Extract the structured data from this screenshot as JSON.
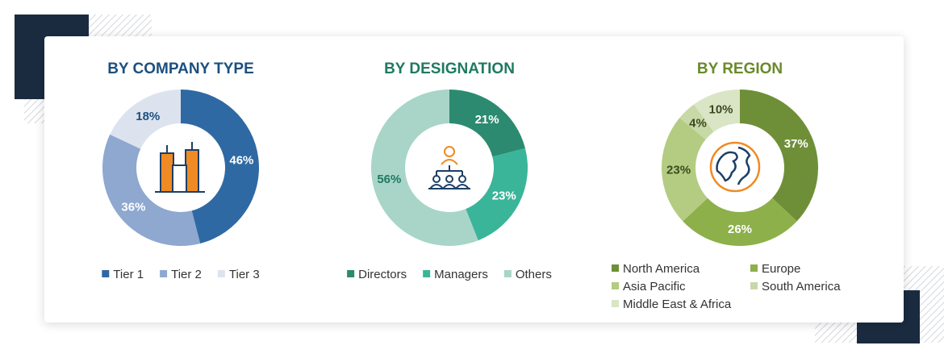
{
  "chart_data": [
    {
      "type": "donut",
      "title": "BY COMPANY TYPE",
      "title_color": "#1c4f7f",
      "categories": [
        "Tier 1",
        "Tier 2",
        "Tier 3"
      ],
      "values": [
        46,
        36,
        18
      ],
      "value_labels": [
        "46%",
        "36%",
        "18%"
      ],
      "colors": [
        "#2f69a3",
        "#8ea8cf",
        "#dce3ef"
      ]
    },
    {
      "type": "donut",
      "title": "BY DESIGNATION",
      "title_color": "#1f7a60",
      "categories": [
        "Directors",
        "Managers",
        "Others"
      ],
      "values": [
        21,
        23,
        56
      ],
      "value_labels": [
        "21%",
        "23%",
        "56%"
      ],
      "colors": [
        "#2b8a6f",
        "#3ab59a",
        "#a8d5c8"
      ]
    },
    {
      "type": "donut",
      "title": "BY REGION",
      "title_color": "#6a8a2b",
      "categories": [
        "North America",
        "Europe",
        "Asia Pacific",
        "South America",
        "Middle East & Africa"
      ],
      "values": [
        37,
        26,
        23,
        4,
        10
      ],
      "value_labels": [
        "37%",
        "26%",
        "23%",
        "4%",
        "10%"
      ],
      "colors": [
        "#6e8f37",
        "#8db04b",
        "#b3cc82",
        "#c7d9a6",
        "#d9e5c5"
      ]
    }
  ]
}
